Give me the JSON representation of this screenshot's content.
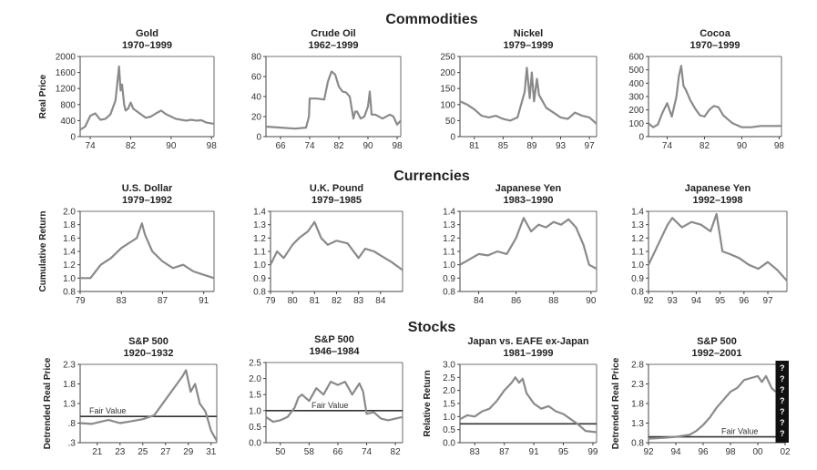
{
  "sections": [
    {
      "title": "Commodities",
      "ylabel": "Real Price"
    },
    {
      "title": "Currencies",
      "ylabel": "Cumulative Return"
    },
    {
      "title": "Stocks",
      "ylabel": ""
    }
  ],
  "colors": {
    "series": "#8a8a8a",
    "ref": "#333333",
    "axis": "#444444",
    "unknown_box": "#111111"
  },
  "chart_data": [
    {
      "type": "line",
      "id": "gold",
      "title": "Gold",
      "subtitle": "1970–1999",
      "xlim": [
        1972,
        1998.5
      ],
      "xticks": [
        74,
        82,
        90,
        98
      ],
      "ylim": [
        0,
        2000
      ],
      "yticks": [
        "0",
        "400",
        "800",
        "1200",
        "1600",
        "2000"
      ],
      "ytick_values": [
        0,
        400,
        800,
        1200,
        1600,
        2000
      ],
      "x": [
        1972,
        1973,
        1974,
        1975,
        1976,
        1977,
        1978,
        1979,
        1979.7,
        1980,
        1980.3,
        1980.7,
        1981,
        1981.5,
        1982,
        1982.5,
        1983,
        1984,
        1985,
        1986,
        1987,
        1988,
        1989,
        1990,
        1991,
        1992,
        1993,
        1994,
        1995,
        1996,
        1997,
        1998.5
      ],
      "y": [
        170,
        250,
        520,
        580,
        420,
        440,
        560,
        900,
        1750,
        1150,
        1300,
        800,
        650,
        700,
        850,
        700,
        650,
        560,
        470,
        500,
        580,
        650,
        560,
        500,
        440,
        420,
        400,
        420,
        400,
        410,
        350,
        320
      ]
    },
    {
      "type": "line",
      "id": "crude-oil",
      "title": "Crude Oil",
      "subtitle": "1962–1999",
      "xlim": [
        1962,
        1999
      ],
      "xticks": [
        66,
        74,
        82,
        90,
        98
      ],
      "ylim": [
        0,
        80
      ],
      "yticks": [
        "0",
        "20",
        "40",
        "60",
        "80"
      ],
      "ytick_values": [
        0,
        20,
        40,
        60,
        80
      ],
      "x": [
        1962,
        1966,
        1970,
        1973,
        1973.8,
        1974,
        1976,
        1978,
        1979,
        1980,
        1981,
        1982,
        1983,
        1984,
        1985,
        1986,
        1986.5,
        1987,
        1988,
        1989,
        1990,
        1990.5,
        1991,
        1992,
        1994,
        1996,
        1997,
        1998,
        1999
      ],
      "y": [
        10,
        9,
        8,
        9,
        20,
        38,
        38,
        37,
        55,
        65,
        62,
        50,
        45,
        44,
        40,
        18,
        25,
        25,
        18,
        20,
        30,
        45,
        22,
        22,
        18,
        22,
        20,
        12,
        16
      ]
    },
    {
      "type": "line",
      "id": "nickel",
      "title": "Nickel",
      "subtitle": "1979–1999",
      "xlim": [
        1979,
        1998
      ],
      "xticks": [
        81,
        85,
        89,
        93,
        97
      ],
      "ylim": [
        0,
        250
      ],
      "yticks": [
        "0",
        "50",
        "100",
        "150",
        "200",
        "250"
      ],
      "ytick_values": [
        0,
        50,
        100,
        150,
        200,
        250
      ],
      "x": [
        1979,
        1980,
        1981,
        1982,
        1983,
        1984,
        1985,
        1986,
        1987,
        1988,
        1988.3,
        1988.7,
        1989,
        1989.3,
        1989.7,
        1990,
        1991,
        1992,
        1993,
        1994,
        1995,
        1996,
        1997,
        1998
      ],
      "y": [
        110,
        100,
        85,
        65,
        60,
        65,
        55,
        50,
        60,
        140,
        215,
        120,
        200,
        110,
        180,
        130,
        90,
        75,
        60,
        55,
        75,
        65,
        60,
        40
      ]
    },
    {
      "type": "line",
      "id": "cocoa",
      "title": "Cocoa",
      "subtitle": "1970–1999",
      "xlim": [
        1970,
        1998.5
      ],
      "xticks": [
        74,
        82,
        90,
        98
      ],
      "ylim": [
        0,
        600
      ],
      "yticks": [
        "0",
        "100",
        "200",
        "300",
        "400",
        "500",
        "600"
      ],
      "ytick_values": [
        0,
        100,
        200,
        300,
        400,
        500,
        600
      ],
      "x": [
        1970,
        1971,
        1972,
        1973,
        1974,
        1975,
        1976,
        1976.5,
        1977,
        1977.5,
        1978,
        1979,
        1980,
        1981,
        1982,
        1983,
        1984,
        1985,
        1986,
        1987,
        1988,
        1990,
        1992,
        1994,
        1996,
        1998.5
      ],
      "y": [
        100,
        70,
        90,
        180,
        250,
        150,
        300,
        450,
        530,
        380,
        350,
        270,
        210,
        160,
        150,
        200,
        230,
        220,
        160,
        130,
        100,
        70,
        70,
        80,
        80,
        80
      ]
    },
    {
      "type": "line",
      "id": "us-dollar",
      "title": "U.S. Dollar",
      "subtitle": "1979–1992",
      "xlim": [
        1979,
        1992
      ],
      "xticks": [
        79,
        83,
        87,
        91
      ],
      "ylim": [
        0.8,
        2.0
      ],
      "yticks": [
        "0.8",
        "1.0",
        "1.2",
        "1.4",
        "1.6",
        "1.8",
        "2.0"
      ],
      "ytick_values": [
        0.8,
        1.0,
        1.2,
        1.4,
        1.6,
        1.8,
        2.0
      ],
      "x": [
        1979,
        1980,
        1981,
        1982,
        1983,
        1984,
        1984.5,
        1985,
        1985.3,
        1986,
        1987,
        1988,
        1989,
        1990,
        1991,
        1992
      ],
      "y": [
        1.0,
        1.0,
        1.2,
        1.3,
        1.45,
        1.55,
        1.6,
        1.82,
        1.65,
        1.4,
        1.25,
        1.15,
        1.2,
        1.1,
        1.05,
        1.0
      ]
    },
    {
      "type": "line",
      "id": "uk-pound",
      "title": "U.K. Pound",
      "subtitle": "1979–1985",
      "xlim": [
        1979,
        1985
      ],
      "xticks": [
        79,
        80,
        81,
        82,
        83,
        84
      ],
      "ylim": [
        0.8,
        1.4
      ],
      "yticks": [
        "0.8",
        "0.9",
        "1.0",
        "1.1",
        "1.2",
        "1.3",
        "1.4"
      ],
      "ytick_values": [
        0.8,
        0.9,
        1.0,
        1.1,
        1.2,
        1.3,
        1.4
      ],
      "x": [
        1979,
        1979.3,
        1979.6,
        1980,
        1980.3,
        1980.7,
        1981,
        1981.3,
        1981.6,
        1982,
        1982.5,
        1983,
        1983.3,
        1983.7,
        1984,
        1984.5,
        1985
      ],
      "y": [
        1.0,
        1.1,
        1.05,
        1.15,
        1.2,
        1.25,
        1.32,
        1.2,
        1.15,
        1.18,
        1.16,
        1.05,
        1.12,
        1.1,
        1.07,
        1.02,
        0.96
      ]
    },
    {
      "type": "line",
      "id": "yen-1983",
      "title": "Japanese Yen",
      "subtitle": "1983–1990",
      "xlim": [
        1983,
        1990.3
      ],
      "xticks": [
        84,
        86,
        88,
        90
      ],
      "ylim": [
        0.8,
        1.4
      ],
      "yticks": [
        "0.8",
        "0.9",
        "1.0",
        "1.1",
        "1.2",
        "1.3",
        "1.4"
      ],
      "ytick_values": [
        0.8,
        0.9,
        1.0,
        1.1,
        1.2,
        1.3,
        1.4
      ],
      "x": [
        1983,
        1983.5,
        1984,
        1984.5,
        1985,
        1985.5,
        1986,
        1986.4,
        1986.8,
        1987.2,
        1987.6,
        1988,
        1988.4,
        1988.8,
        1989.2,
        1989.6,
        1989.9,
        1990.3
      ],
      "y": [
        1.0,
        1.04,
        1.08,
        1.07,
        1.1,
        1.08,
        1.2,
        1.35,
        1.25,
        1.3,
        1.28,
        1.32,
        1.3,
        1.34,
        1.28,
        1.15,
        1.0,
        0.97
      ]
    },
    {
      "type": "line",
      "id": "yen-1992",
      "title": "Japanese Yen",
      "subtitle": "1992–1998",
      "xlim": [
        1992,
        1997.8
      ],
      "xticks": [
        92,
        93,
        94,
        95,
        96,
        97
      ],
      "ylim": [
        0.8,
        1.4
      ],
      "yticks": [
        "0.8",
        "0.9",
        "1.0",
        "1.1",
        "1.2",
        "1.3",
        "1.4"
      ],
      "ytick_values": [
        0.8,
        0.9,
        1.0,
        1.1,
        1.2,
        1.3,
        1.4
      ],
      "x": [
        1992,
        1992.4,
        1992.8,
        1993,
        1993.4,
        1993.8,
        1994.2,
        1994.6,
        1994.85,
        1995.1,
        1995.4,
        1995.8,
        1996.2,
        1996.6,
        1997,
        1997.4,
        1997.8
      ],
      "y": [
        1.0,
        1.15,
        1.3,
        1.35,
        1.28,
        1.32,
        1.3,
        1.25,
        1.38,
        1.1,
        1.08,
        1.05,
        1.0,
        0.97,
        1.02,
        0.96,
        0.88
      ]
    },
    {
      "type": "line",
      "id": "sp500-1920",
      "title": "S&P 500",
      "subtitle": "1920–1932",
      "xlim": [
        1919.5,
        1931.5
      ],
      "xticks": [
        21,
        23,
        25,
        27,
        29,
        31
      ],
      "ylim": [
        0.3,
        2.3
      ],
      "yticks": [
        ".3",
        ".8",
        "1.3",
        "1.8",
        "2.3"
      ],
      "ytick_values": [
        0.3,
        0.8,
        1.3,
        1.8,
        2.3
      ],
      "ylabel": "Detrended Real Price",
      "ref_value": 0.97,
      "ref_label": "Fair Value",
      "x": [
        1919.5,
        1920.5,
        1921.5,
        1922,
        1923,
        1924,
        1925,
        1925.5,
        1926,
        1927,
        1927.5,
        1928,
        1928.5,
        1928.8,
        1929.2,
        1929.6,
        1930,
        1930.5,
        1931,
        1931.5
      ],
      "y": [
        0.8,
        0.78,
        0.85,
        0.88,
        0.8,
        0.85,
        0.9,
        0.95,
        1.0,
        1.4,
        1.6,
        1.8,
        2.0,
        2.15,
        1.6,
        1.8,
        1.3,
        1.1,
        0.6,
        0.35
      ]
    },
    {
      "type": "line",
      "id": "sp500-1946",
      "title": "S&P 500",
      "subtitle": "1946–1984",
      "xlim": [
        1946,
        1984
      ],
      "xticks": [
        50,
        58,
        66,
        74,
        82
      ],
      "ylim": [
        0,
        2.5
      ],
      "yticks": [
        "0.0",
        "0.5",
        "1.0",
        "1.5",
        "2.0",
        "2.5"
      ],
      "ytick_values": [
        0,
        0.5,
        1.0,
        1.5,
        2.0,
        2.5
      ],
      "ref_value": 1.0,
      "ref_label": "Fair Value",
      "x": [
        1946,
        1948,
        1950,
        1952,
        1954,
        1955,
        1956,
        1958,
        1960,
        1962,
        1964,
        1966,
        1968,
        1970,
        1972,
        1973,
        1974,
        1976,
        1978,
        1980,
        1982,
        1984
      ],
      "y": [
        0.8,
        0.65,
        0.7,
        0.8,
        1.1,
        1.4,
        1.5,
        1.3,
        1.7,
        1.5,
        1.9,
        1.8,
        1.9,
        1.5,
        1.85,
        1.6,
        0.9,
        0.95,
        0.75,
        0.7,
        0.75,
        0.8
      ]
    },
    {
      "type": "line",
      "id": "japan-vs-eafe",
      "title": "Japan vs. EAFE ex-Japan",
      "subtitle": "1981–1999",
      "xlim": [
        1981,
        1999.5
      ],
      "xticks": [
        83,
        87,
        91,
        95,
        99
      ],
      "ylim": [
        0,
        3.0
      ],
      "yticks": [
        "0.0",
        "0.5",
        "1.0",
        "1.5",
        "2.0",
        "2.5",
        "3.0"
      ],
      "ytick_values": [
        0,
        0.5,
        1.0,
        1.5,
        2.0,
        2.5,
        3.0
      ],
      "ylabel": "Relative Return",
      "ref_value": 0.72,
      "x": [
        1981,
        1982,
        1983,
        1984,
        1985,
        1986,
        1987,
        1988,
        1988.5,
        1989,
        1989.5,
        1990,
        1991,
        1992,
        1993,
        1994,
        1995,
        1996,
        1997,
        1998,
        1999.5
      ],
      "y": [
        0.9,
        1.05,
        1.0,
        1.2,
        1.3,
        1.6,
        2.0,
        2.3,
        2.5,
        2.3,
        2.45,
        1.9,
        1.5,
        1.3,
        1.4,
        1.2,
        1.1,
        0.9,
        0.7,
        0.45,
        0.4
      ]
    },
    {
      "type": "line",
      "id": "sp500-1992",
      "title": "S&P 500",
      "subtitle": "1992–2001",
      "xlim": [
        1992,
        2002
      ],
      "xticks": [
        "92",
        "94",
        "96",
        "98",
        "00",
        "02"
      ],
      "xtick_values": [
        1992,
        1994,
        1996,
        1998,
        2000,
        2002
      ],
      "ylim": [
        0.8,
        2.8
      ],
      "yticks": [
        "0.8",
        "1.3",
        "1.8",
        "2.3",
        "2.8"
      ],
      "ytick_values": [
        0.8,
        1.3,
        1.8,
        2.3,
        2.8
      ],
      "ylabel": "Detrended Real Price",
      "ref_value": 0.95,
      "ref_label": "Fair Value",
      "unknown_from": 2001.3,
      "unknown_marks": [
        "?",
        "?",
        "?",
        "?",
        "?",
        "?",
        "?"
      ],
      "x": [
        1992,
        1993,
        1994,
        1995,
        1995.5,
        1996,
        1996.5,
        1997,
        1997.5,
        1998,
        1998.5,
        1999,
        1999.5,
        2000,
        2000.3,
        2000.6,
        2001,
        2001.3
      ],
      "y": [
        0.9,
        0.92,
        0.95,
        1.0,
        1.1,
        1.25,
        1.45,
        1.7,
        1.9,
        2.1,
        2.2,
        2.4,
        2.45,
        2.5,
        2.35,
        2.5,
        2.2,
        2.1
      ]
    }
  ]
}
